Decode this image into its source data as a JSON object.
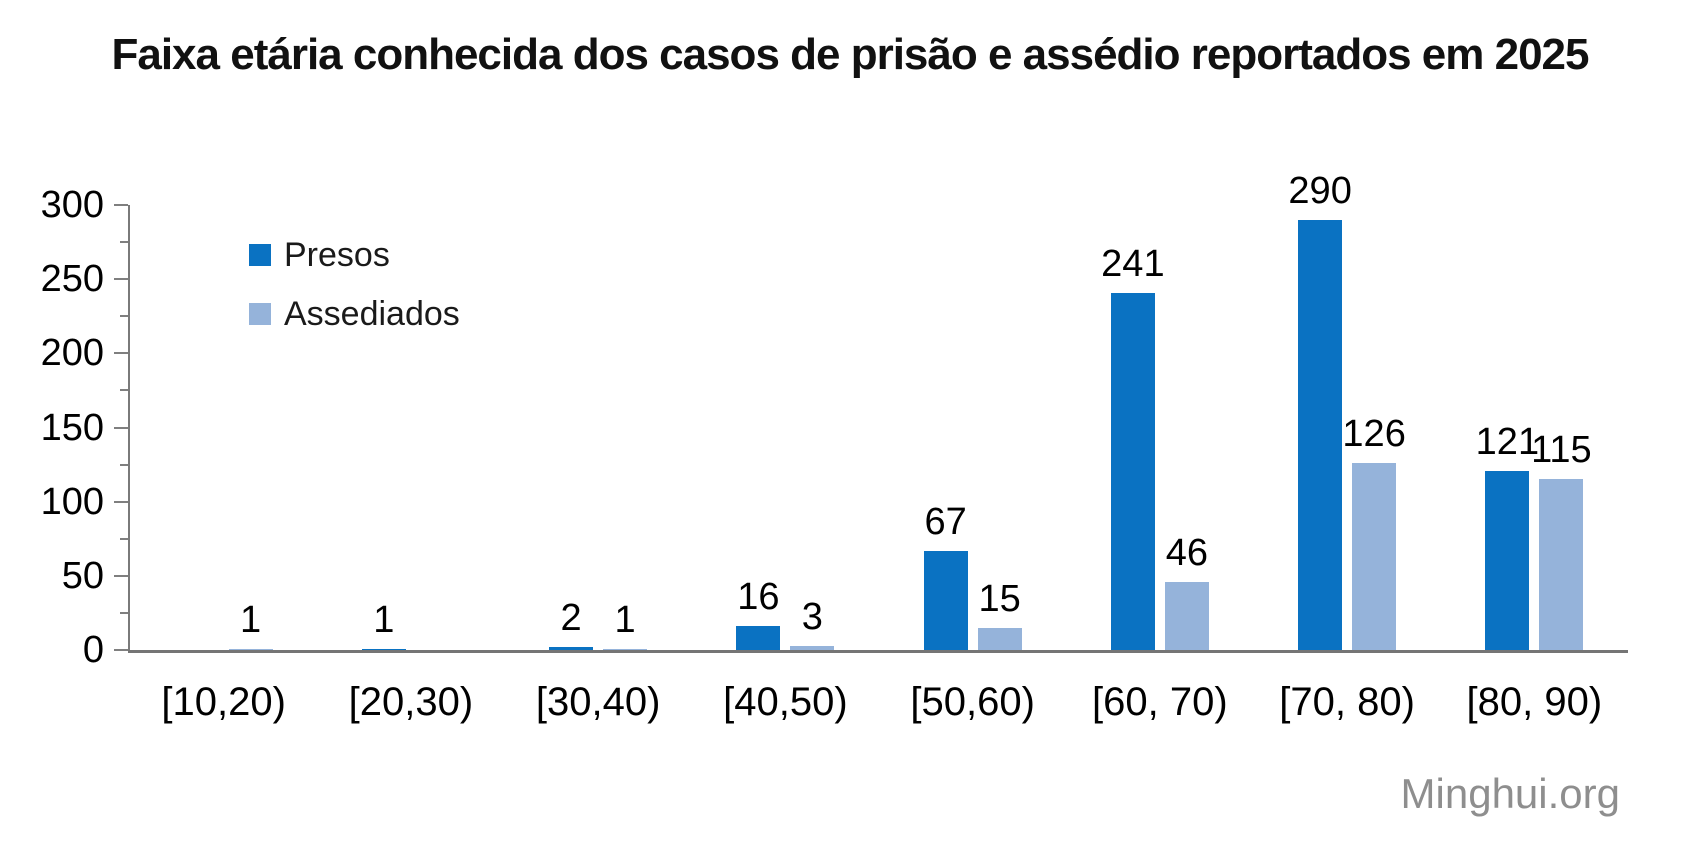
{
  "title": "Faixa etária conhecida dos casos de prisão e assédio reportados em 2025",
  "watermark": "Minghui.org",
  "chart_data": {
    "type": "bar",
    "title": "Faixa etária conhecida dos casos de prisão e assédio reportados em 2025",
    "categories": [
      "[10,20)",
      "[20,30)",
      "[30,40)",
      "[40,50)",
      "[50,60)",
      "[60, 70)",
      "[70, 80)",
      "[80, 90)"
    ],
    "series": [
      {
        "name": "Presos",
        "color": "#0A72C2",
        "values": [
          null,
          1,
          2,
          16,
          67,
          241,
          290,
          121
        ]
      },
      {
        "name": "Assediados",
        "color": "#95B3DA",
        "values": [
          1,
          null,
          1,
          3,
          15,
          46,
          126,
          115
        ]
      }
    ],
    "ylim": [
      0,
      300
    ],
    "yticks": [
      0,
      50,
      100,
      150,
      200,
      250,
      300
    ],
    "xlabel": "",
    "ylabel": "",
    "grid": false,
    "data_labels": true,
    "legend_position": "top-left",
    "axis_color": "#7f7f7f",
    "source_label": "Minghui.org"
  }
}
